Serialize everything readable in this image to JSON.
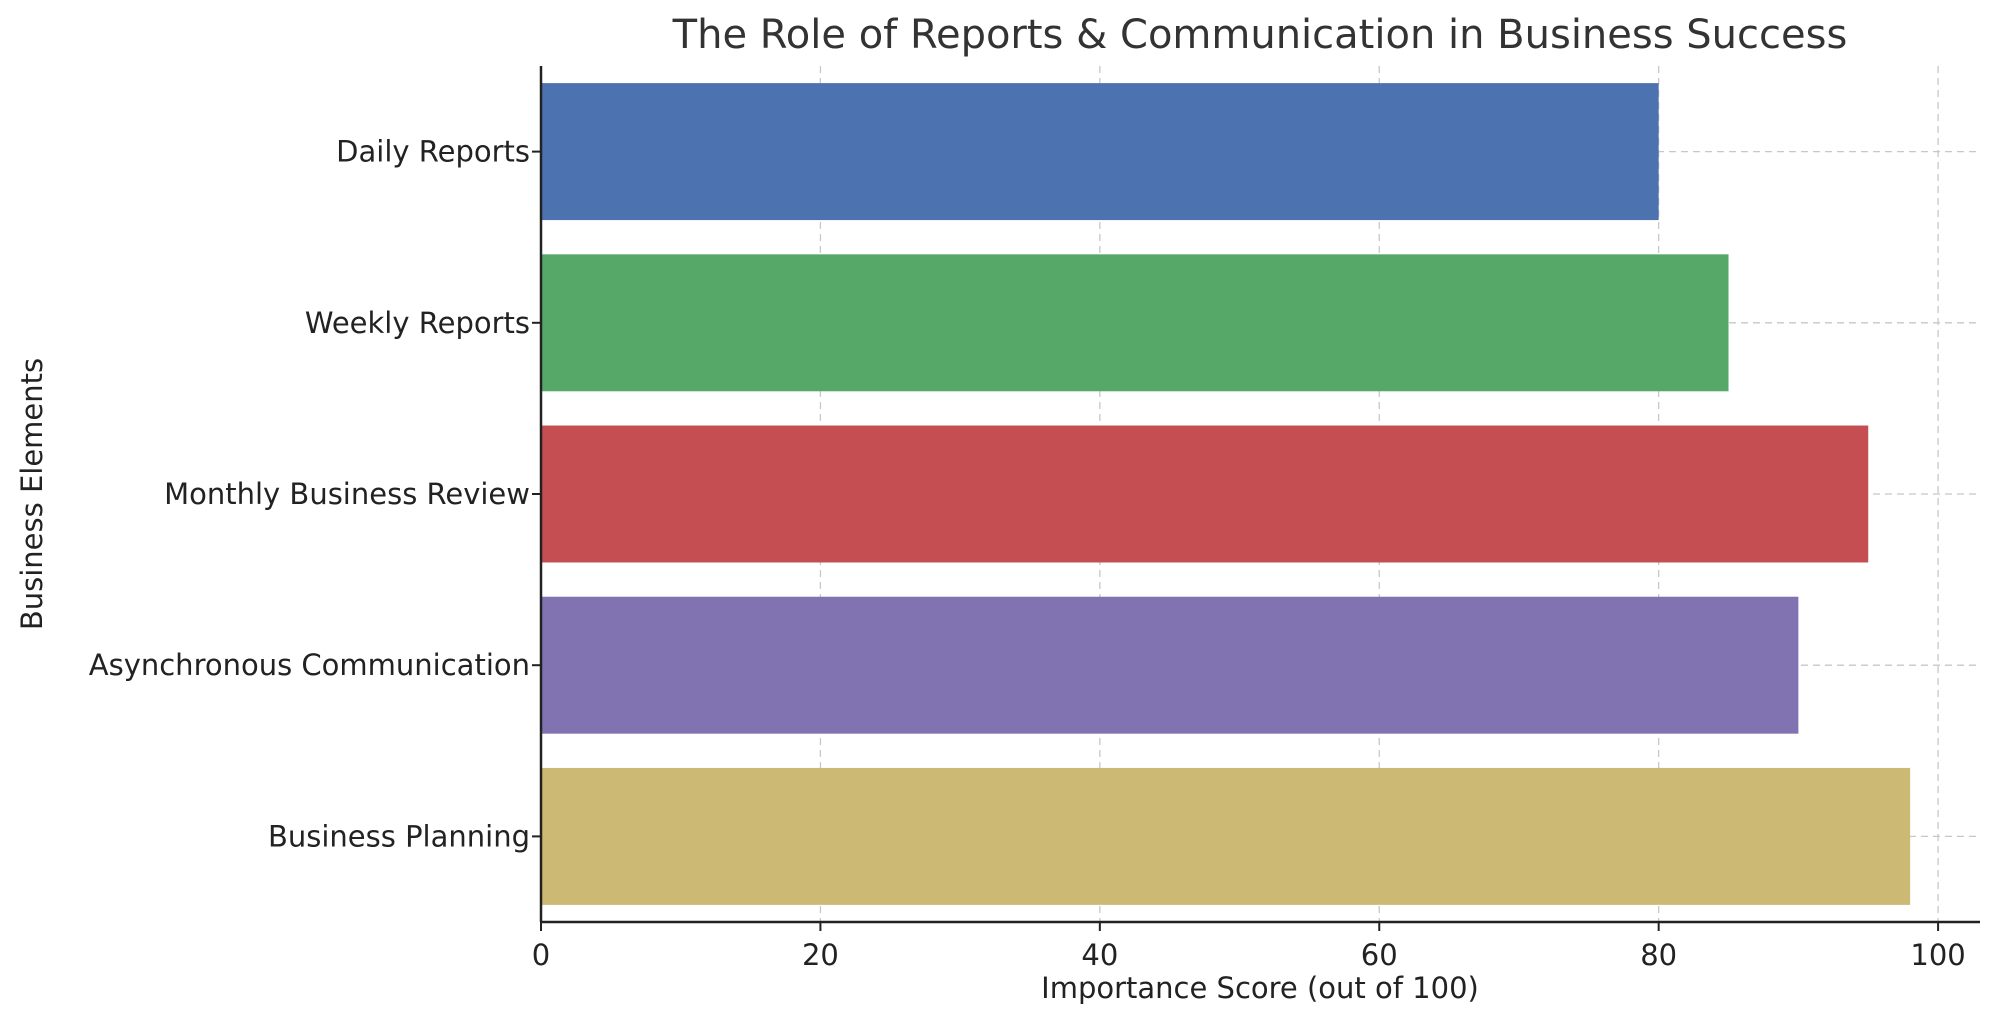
{
  "chart_data": {
    "type": "bar",
    "orientation": "horizontal",
    "title": "The Role of Reports & Communication in Business Success",
    "xlabel": "Importance Score (out of 100)",
    "ylabel": "Business Elements",
    "categories": [
      "Daily Reports",
      "Weekly Reports",
      "Monthly Business Review",
      "Asynchronous Communication",
      "Business Planning"
    ],
    "values": [
      80,
      85,
      95,
      90,
      98
    ],
    "colors": [
      "#4c72b0",
      "#55a868",
      "#c44e52",
      "#8172b2",
      "#ccb974"
    ],
    "xlim": [
      0,
      103
    ],
    "xticks": [
      0,
      20,
      40,
      60,
      80,
      100
    ],
    "xtick_labels": [
      "0",
      "20",
      "40",
      "60",
      "80",
      "100"
    ],
    "grid": true
  }
}
